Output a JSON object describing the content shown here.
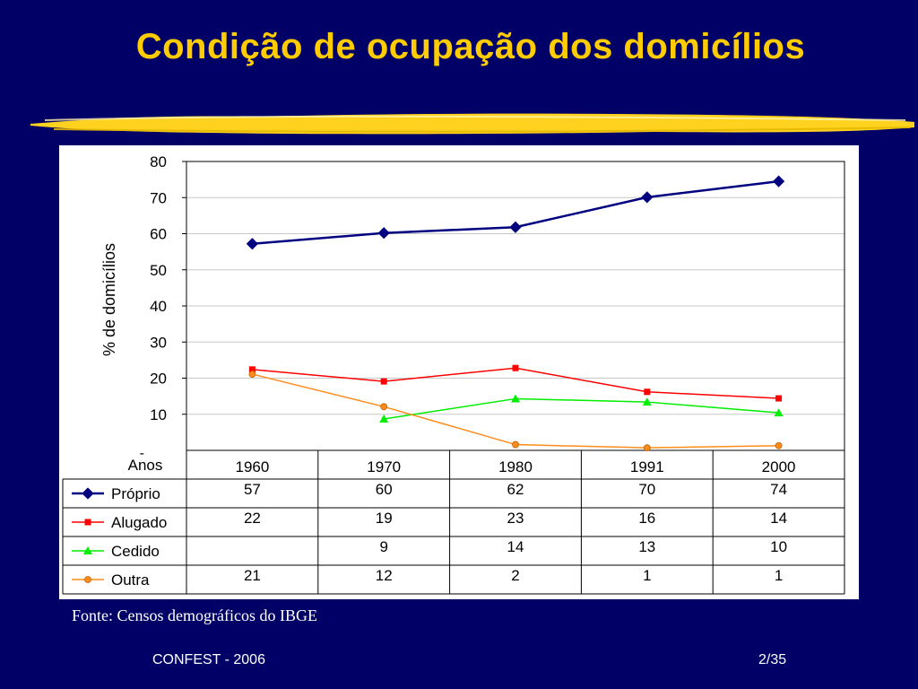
{
  "slide": {
    "title": "Condição de ocupação dos domicílios",
    "source": "Fonte: Censos demográficos do IBGE",
    "footer_left": "CONFEST - 2006",
    "page": "2/35"
  },
  "colors": {
    "background": "#000066",
    "title": "#ffcc00",
    "proprio": "#000080",
    "alugado": "#ff0000",
    "cedido": "#00ee00",
    "outra": "#ff8c1a"
  },
  "chart_data": {
    "type": "line",
    "title": "",
    "xlabel": "Anos",
    "ylabel": "% de domicílios",
    "ylim": [
      0,
      80
    ],
    "yticks": [
      80,
      70,
      60,
      50,
      40,
      30,
      20,
      10
    ],
    "zero_tick_label": "-",
    "grid": true,
    "categories": [
      "1960",
      "1970",
      "1980",
      "1991",
      "2000"
    ],
    "series": [
      {
        "name": "Próprio",
        "marker": "diamond",
        "values": [
          57,
          60,
          62,
          70,
          74
        ],
        "plot_values": [
          57.2,
          60.2,
          61.8,
          70.1,
          74.5
        ]
      },
      {
        "name": "Alugado",
        "marker": "square",
        "values": [
          22,
          19,
          23,
          16,
          14
        ],
        "plot_values": [
          22.4,
          19.1,
          22.8,
          16.2,
          14.4
        ]
      },
      {
        "name": "Cedido",
        "marker": "triangle",
        "values": [
          "",
          9,
          14,
          13,
          10
        ],
        "plot_values": [
          null,
          8.7,
          14.3,
          13.4,
          10.4
        ]
      },
      {
        "name": "Outra",
        "marker": "circle",
        "values": [
          21,
          12,
          2,
          1,
          1
        ],
        "plot_values": [
          21.1,
          12.1,
          1.6,
          0.7,
          1.3
        ]
      }
    ]
  }
}
